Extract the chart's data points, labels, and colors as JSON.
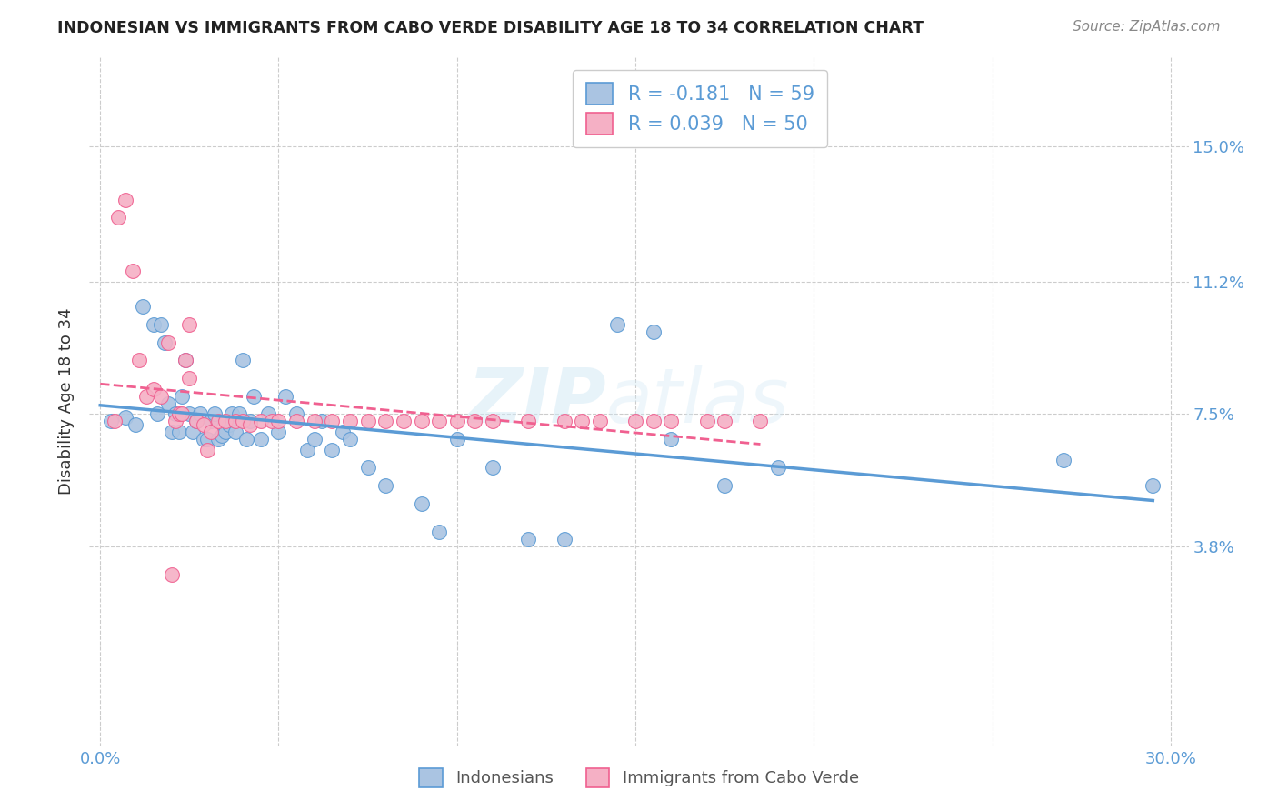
{
  "title": "INDONESIAN VS IMMIGRANTS FROM CABO VERDE DISABILITY AGE 18 TO 34 CORRELATION CHART",
  "source": "Source: ZipAtlas.com",
  "ylabel": "Disability Age 18 to 34",
  "xlim": [
    -0.003,
    0.305
  ],
  "ylim": [
    -0.018,
    0.175
  ],
  "xticks": [
    0.0,
    0.05,
    0.1,
    0.15,
    0.2,
    0.25,
    0.3
  ],
  "xticklabels": [
    "0.0%",
    "",
    "",
    "",
    "",
    "",
    "30.0%"
  ],
  "ytick_positions": [
    0.038,
    0.075,
    0.112,
    0.15
  ],
  "yticklabels": [
    "3.8%",
    "7.5%",
    "11.2%",
    "15.0%"
  ],
  "blue_R": "-0.181",
  "blue_N": "59",
  "pink_R": "0.039",
  "pink_N": "50",
  "blue_fill": "#aac4e2",
  "pink_fill": "#f5b0c5",
  "blue_edge": "#5b9bd5",
  "pink_edge": "#f06090",
  "watermark": "ZIPatlas",
  "indonesian_x": [
    0.003,
    0.007,
    0.01,
    0.012,
    0.015,
    0.016,
    0.017,
    0.018,
    0.019,
    0.02,
    0.021,
    0.022,
    0.023,
    0.024,
    0.025,
    0.026,
    0.027,
    0.028,
    0.029,
    0.03,
    0.031,
    0.032,
    0.033,
    0.034,
    0.035,
    0.036,
    0.037,
    0.038,
    0.039,
    0.04,
    0.041,
    0.042,
    0.043,
    0.045,
    0.047,
    0.05,
    0.052,
    0.055,
    0.058,
    0.06,
    0.062,
    0.065,
    0.068,
    0.07,
    0.075,
    0.08,
    0.09,
    0.095,
    0.1,
    0.11,
    0.12,
    0.13,
    0.145,
    0.155,
    0.16,
    0.175,
    0.19,
    0.27,
    0.295
  ],
  "indonesian_y": [
    0.073,
    0.074,
    0.072,
    0.105,
    0.1,
    0.075,
    0.1,
    0.095,
    0.078,
    0.07,
    0.075,
    0.07,
    0.08,
    0.09,
    0.075,
    0.07,
    0.073,
    0.075,
    0.068,
    0.068,
    0.073,
    0.075,
    0.068,
    0.069,
    0.07,
    0.072,
    0.075,
    0.07,
    0.075,
    0.09,
    0.068,
    0.073,
    0.08,
    0.068,
    0.075,
    0.07,
    0.08,
    0.075,
    0.065,
    0.068,
    0.073,
    0.065,
    0.07,
    0.068,
    0.06,
    0.055,
    0.05,
    0.042,
    0.068,
    0.06,
    0.04,
    0.04,
    0.1,
    0.098,
    0.068,
    0.055,
    0.06,
    0.062,
    0.055
  ],
  "caboverde_x": [
    0.004,
    0.005,
    0.007,
    0.009,
    0.011,
    0.013,
    0.015,
    0.017,
    0.019,
    0.021,
    0.022,
    0.023,
    0.024,
    0.025,
    0.027,
    0.029,
    0.031,
    0.033,
    0.035,
    0.038,
    0.04,
    0.042,
    0.045,
    0.048,
    0.05,
    0.055,
    0.06,
    0.065,
    0.07,
    0.075,
    0.08,
    0.085,
    0.09,
    0.095,
    0.1,
    0.105,
    0.11,
    0.12,
    0.13,
    0.135,
    0.14,
    0.15,
    0.155,
    0.16,
    0.17,
    0.175,
    0.185,
    0.025,
    0.03,
    0.02
  ],
  "caboverde_y": [
    0.073,
    0.13,
    0.135,
    0.115,
    0.09,
    0.08,
    0.082,
    0.08,
    0.095,
    0.073,
    0.075,
    0.075,
    0.09,
    0.085,
    0.073,
    0.072,
    0.07,
    0.073,
    0.073,
    0.073,
    0.073,
    0.072,
    0.073,
    0.073,
    0.073,
    0.073,
    0.073,
    0.073,
    0.073,
    0.073,
    0.073,
    0.073,
    0.073,
    0.073,
    0.073,
    0.073,
    0.073,
    0.073,
    0.073,
    0.073,
    0.073,
    0.073,
    0.073,
    0.073,
    0.073,
    0.073,
    0.073,
    0.1,
    0.065,
    0.03
  ]
}
